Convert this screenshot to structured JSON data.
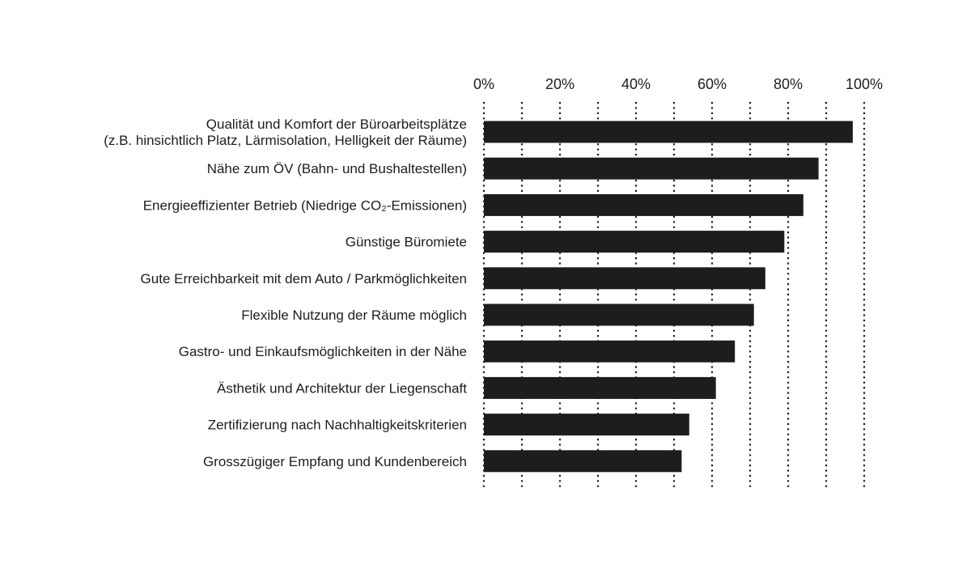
{
  "chart_data": {
    "type": "bar",
    "orientation": "horizontal",
    "xlim": [
      0,
      100
    ],
    "ticks": [
      {
        "value": 0,
        "label": "0%"
      },
      {
        "value": 10,
        "label": ""
      },
      {
        "value": 20,
        "label": "20%"
      },
      {
        "value": 30,
        "label": ""
      },
      {
        "value": 40,
        "label": "40%"
      },
      {
        "value": 50,
        "label": ""
      },
      {
        "value": 60,
        "label": "60%"
      },
      {
        "value": 70,
        "label": ""
      },
      {
        "value": 80,
        "label": "80%"
      },
      {
        "value": 90,
        "label": ""
      },
      {
        "value": 100,
        "label": "100%"
      }
    ],
    "categories": [
      [
        "Qualität und Komfort der Büroarbeitsplätze",
        "(z.B. hinsichtlich Platz, Lärmisolation, Helligkeit der Räume)"
      ],
      [
        "Nähe zum ÖV (Bahn- und Bushaltestellen)"
      ],
      [
        "Energieeffizienter Betrieb (Niedrige CO₂-Emissionen)"
      ],
      [
        "Günstige Büromiete"
      ],
      [
        "Gute Erreichbarkeit mit dem Auto / Parkmöglichkeiten"
      ],
      [
        "Flexible Nutzung der Räume möglich"
      ],
      [
        "Gastro- und Einkaufsmöglichkeiten in der Nähe"
      ],
      [
        "Ästhetik und Architektur der Liegenschaft"
      ],
      [
        "Zertifizierung nach Nachhaltigkeitskriterien"
      ],
      [
        "Grosszügiger Empfang und Kundenbereich"
      ]
    ],
    "values": [
      97,
      88,
      84,
      79,
      74,
      71,
      66,
      61,
      54,
      52
    ],
    "grid": true,
    "grid_style": "dotted",
    "legend": "none",
    "bar_color": "#1d1d1d",
    "text_color": "#1d1d1d",
    "background": "#ffffff"
  }
}
